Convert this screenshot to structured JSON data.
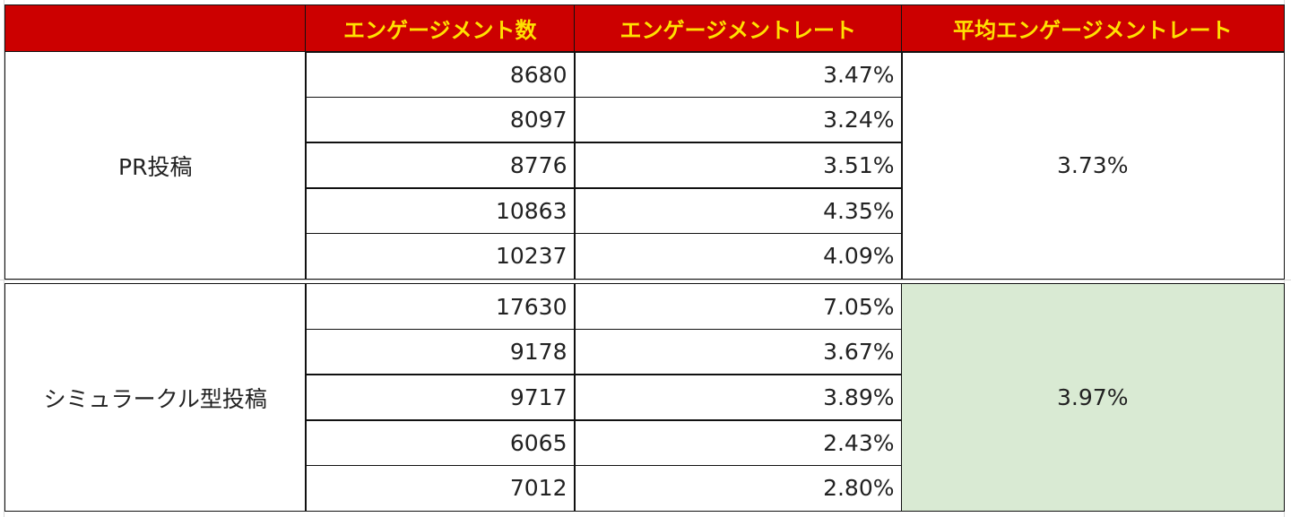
{
  "table": {
    "header": [
      "エンゲージメント数",
      "エンゲージメントレート",
      "平均エンゲージメントレート"
    ],
    "groups": [
      {
        "label": "PR投稿",
        "rows": [
          [
            8680,
            "3.47%"
          ],
          [
            8097,
            "3.24%"
          ],
          [
            8776,
            "3.51%"
          ],
          [
            10863,
            "4.35%"
          ],
          [
            10237,
            "4.09%"
          ]
        ],
        "average": "3.73%"
      },
      {
        "label": "シミュラークル型投稿",
        "rows": [
          [
            17630,
            "7.05%"
          ],
          [
            9178,
            "3.67%"
          ],
          [
            9717,
            "3.89%"
          ],
          [
            6065,
            "2.43%"
          ],
          [
            7012,
            "2.80%"
          ]
        ],
        "average": "3.97%"
      }
    ]
  }
}
